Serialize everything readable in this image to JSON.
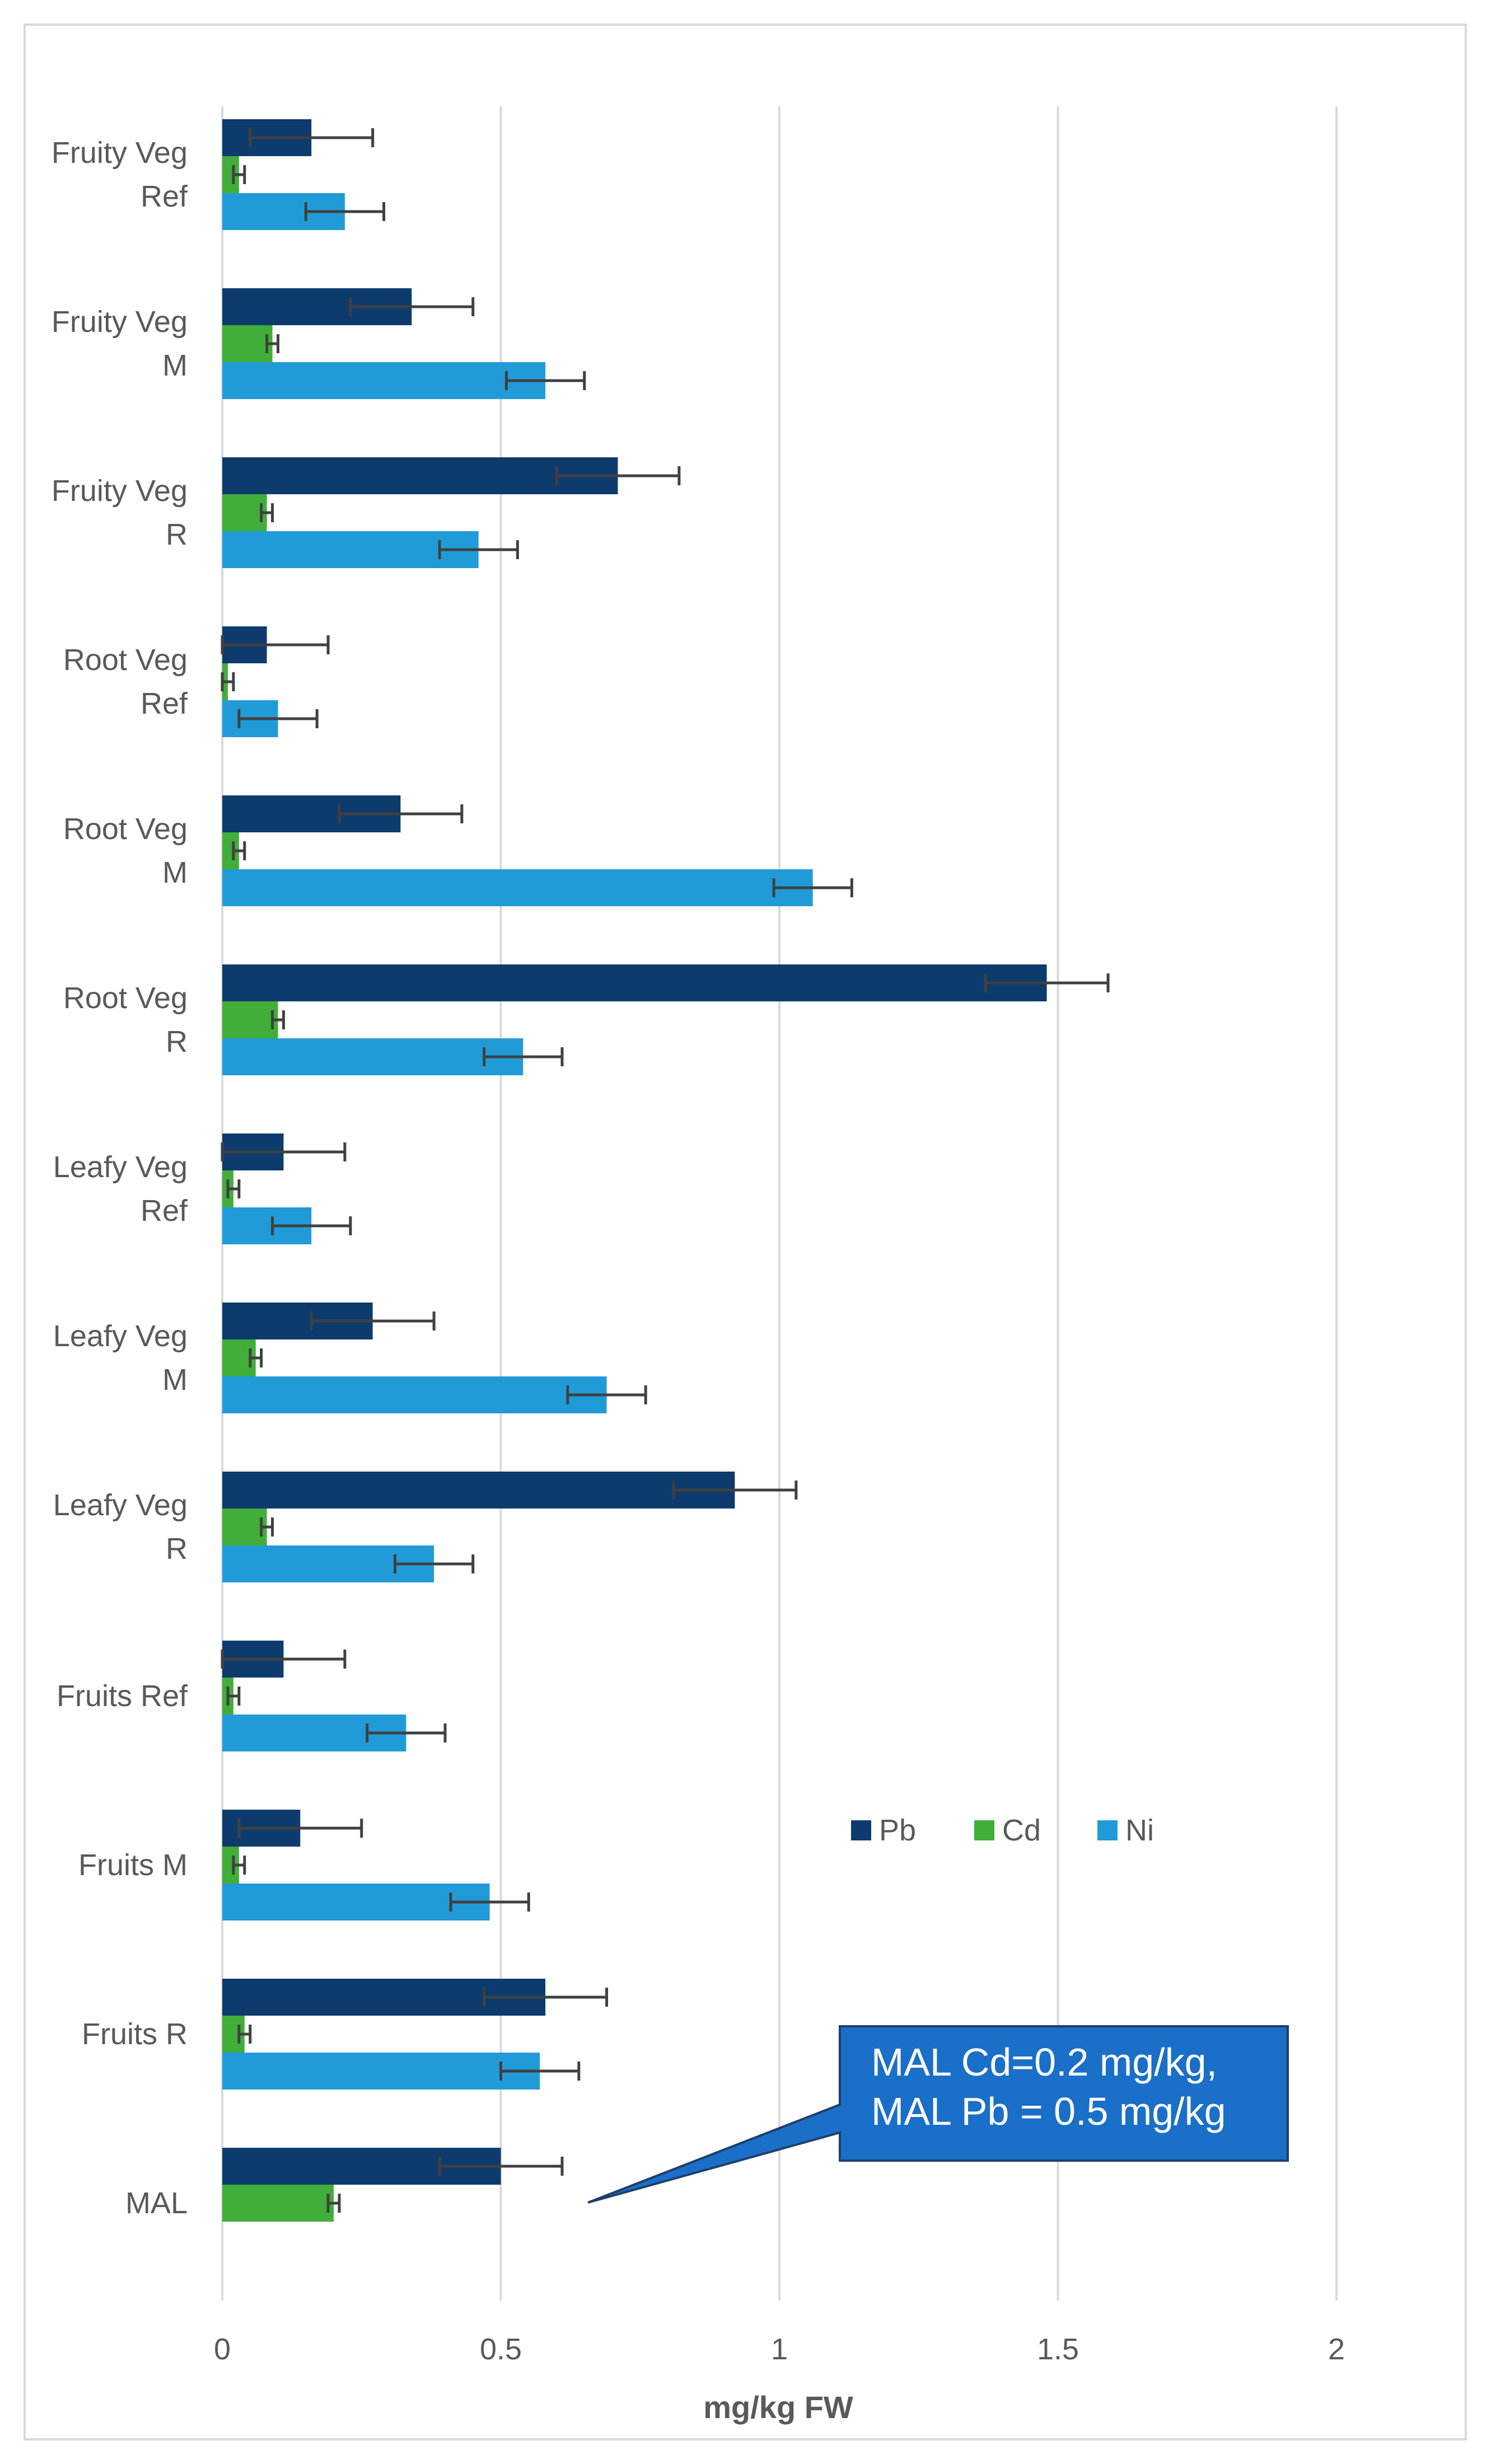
{
  "colors": {
    "Pb": "#0e3b6d",
    "Cd": "#41ae3a",
    "Ni": "#219bd8",
    "grid": "#d9d9d9",
    "errorbar": "#404040",
    "callout_fill": "#1a6fc8",
    "callout_border": "#1d3f6b",
    "text": "#595959"
  },
  "chart_data": {
    "type": "bar",
    "orientation": "horizontal",
    "title": "",
    "xlabel": "mg/kg FW",
    "ylabel": "",
    "xlim": [
      0,
      2
    ],
    "xticks": [
      "0",
      "0.5",
      "1",
      "1.5",
      "2"
    ],
    "xtick_values": [
      0,
      0.5,
      1,
      1.5,
      2
    ],
    "grid": true,
    "legend_position": "lower-right",
    "categories": [
      {
        "label": [
          "Fruity Veg",
          "Ref"
        ]
      },
      {
        "label": [
          "Fruity Veg",
          "M"
        ]
      },
      {
        "label": [
          "Fruity Veg",
          "R"
        ]
      },
      {
        "label": [
          "Root Veg",
          "Ref"
        ]
      },
      {
        "label": [
          "Root Veg",
          "M"
        ]
      },
      {
        "label": [
          "Root Veg",
          "R"
        ]
      },
      {
        "label": [
          "Leafy Veg",
          "Ref"
        ]
      },
      {
        "label": [
          "Leafy Veg",
          "M"
        ]
      },
      {
        "label": [
          "Leafy Veg",
          "R"
        ]
      },
      {
        "label": [
          "Fruits Ref"
        ]
      },
      {
        "label": [
          "Fruits M"
        ]
      },
      {
        "label": [
          "Fruits R"
        ]
      },
      {
        "label": [
          "MAL"
        ]
      }
    ],
    "series": [
      {
        "name": "Pb",
        "values": [
          0.16,
          0.34,
          0.71,
          0.08,
          0.32,
          1.48,
          0.11,
          0.27,
          0.92,
          0.11,
          0.14,
          0.58,
          0.5
        ],
        "errors": [
          0.11,
          0.11,
          0.11,
          0.11,
          0.11,
          0.11,
          0.11,
          0.11,
          0.11,
          0.11,
          0.11,
          0.11,
          0.11
        ]
      },
      {
        "name": "Cd",
        "values": [
          0.03,
          0.09,
          0.08,
          0.01,
          0.03,
          0.1,
          0.02,
          0.06,
          0.08,
          0.02,
          0.03,
          0.04,
          0.2
        ],
        "errors": [
          0.01,
          0.01,
          0.01,
          0.01,
          0.01,
          0.01,
          0.01,
          0.01,
          0.01,
          0.01,
          0.01,
          0.01,
          0.01
        ]
      },
      {
        "name": "Ni",
        "values": [
          0.22,
          0.58,
          0.46,
          0.1,
          1.06,
          0.54,
          0.16,
          0.69,
          0.38,
          0.33,
          0.48,
          0.57,
          null
        ],
        "errors": [
          0.07,
          0.07,
          0.07,
          0.07,
          0.07,
          0.07,
          0.07,
          0.07,
          0.07,
          0.07,
          0.07,
          0.07,
          null
        ]
      }
    ],
    "annotation": {
      "lines": [
        "MAL Cd=0.2 mg/kg,",
        "MAL Pb = 0.5 mg/kg"
      ]
    }
  }
}
